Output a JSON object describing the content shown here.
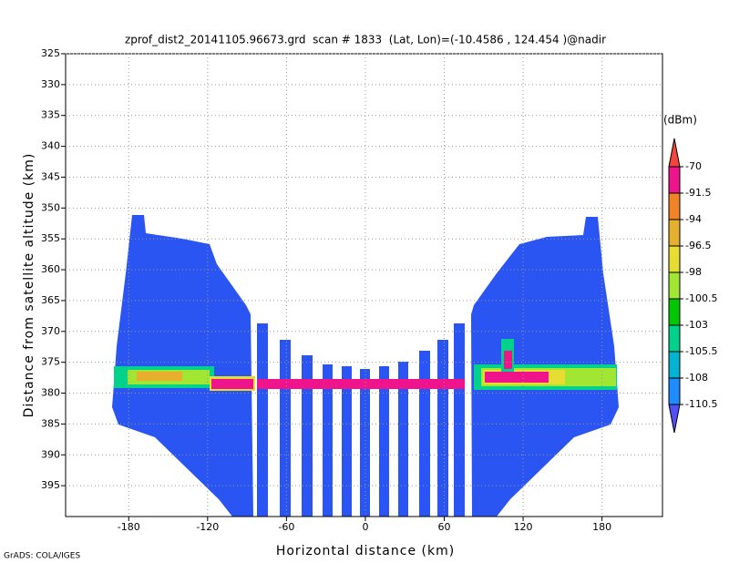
{
  "chart_data": {
    "type": "heatmap",
    "title": "zprof_dist2_20141105.96673.grd  scan # 1833  (Lat, Lon)=(-10.4586 , 124.454 )@nadir",
    "x_label": "Horizontal distance (km)",
    "y_label": "Distance from satellite altitude (km)",
    "xlim": [
      -228,
      226
    ],
    "xticks": [
      -180,
      -120,
      -60,
      0,
      60,
      120,
      180
    ],
    "ylim": [
      400,
      325
    ],
    "yticks": [
      325,
      330,
      335,
      340,
      345,
      350,
      355,
      360,
      365,
      370,
      375,
      380,
      385,
      390,
      395
    ],
    "grid": true,
    "colorbar": {
      "label": "(dBm)",
      "levels": [
        -70,
        -91.5,
        -94,
        -96.5,
        -98,
        -100.5,
        -103,
        -105.5,
        -108,
        -110.5
      ],
      "colors": [
        "#f0463c",
        "#f0148c",
        "#f08228",
        "#e6af2d",
        "#e6dc32",
        "#a0e632",
        "#00c800",
        "#00d28c",
        "#00b4d2",
        "#1e8cff",
        "#5050f5"
      ]
    },
    "footer": "GrADS: COLA/IGES"
  }
}
